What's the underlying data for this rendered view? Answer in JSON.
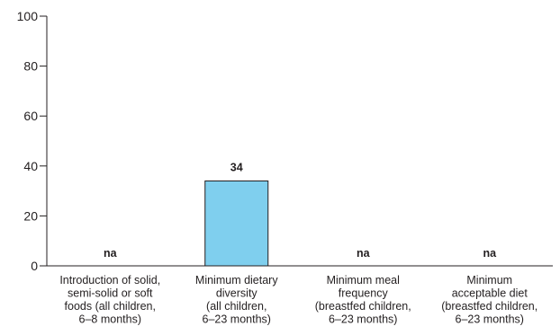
{
  "chart_data": {
    "type": "bar",
    "title": "",
    "xlabel": "",
    "ylabel": "",
    "ylim": [
      0,
      100
    ],
    "yticks": [
      0,
      20,
      40,
      60,
      80,
      100
    ],
    "grid": false,
    "bar_color": "#7fcfee",
    "bar_edge_color": "#231f20",
    "categories": [
      [
        "Introduction of solid,",
        "semi-solid or soft",
        "foods (all children,",
        "6–8 months)"
      ],
      [
        "Minimum dietary",
        "diversity",
        "(all children,",
        "6–23 months)"
      ],
      [
        "Minimum meal",
        "frequency",
        "(breastfed children,",
        "6–23 months)"
      ],
      [
        "Minimum",
        "acceptable diet",
        "(breastfed children,",
        "6–23 months)"
      ]
    ],
    "values": [
      null,
      34,
      null,
      null
    ],
    "data_labels": [
      "na",
      "34",
      "na",
      "na"
    ]
  }
}
